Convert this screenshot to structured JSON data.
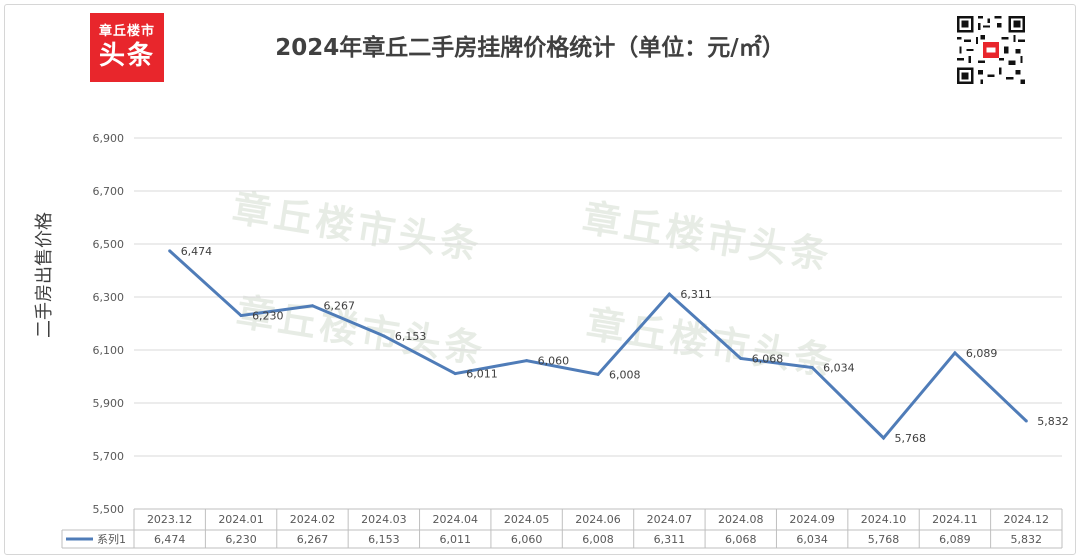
{
  "logo": {
    "line1": "章丘楼市",
    "line2": "头条"
  },
  "title": "2024年章丘二手房挂牌价格统计（单位：元/㎡）",
  "watermark": "章丘楼市头条",
  "chart_data": {
    "type": "line",
    "title": "2024年章丘二手房挂牌价格统计（单位：元/㎡）",
    "ylabel": "二手房出售价格",
    "xlabel": "",
    "ylim": [
      5500,
      6900
    ],
    "yticks": [
      5500,
      5700,
      5900,
      6100,
      6300,
      6500,
      6700,
      6900
    ],
    "ytick_labels": [
      "5,500",
      "5,700",
      "5,900",
      "6,100",
      "6,300",
      "6,500",
      "6,700",
      "6,900"
    ],
    "grid": true,
    "legend": "data-table",
    "categories": [
      "2023.12",
      "2024.01",
      "2024.02",
      "2024.03",
      "2024.04",
      "2024.05",
      "2024.06",
      "2024.07",
      "2024.08",
      "2024.09",
      "2024.10",
      "2024.11",
      "2024.12"
    ],
    "series": [
      {
        "name": "系列1",
        "color": "#4f7cb8",
        "values": [
          6474,
          6230,
          6267,
          6153,
          6011,
          6060,
          6008,
          6311,
          6068,
          6034,
          5768,
          6089,
          5832
        ],
        "labels": [
          "6,474",
          "6,230",
          "6,267",
          "6,153",
          "6,011",
          "6,060",
          "6,008",
          "6,311",
          "6,068",
          "6,034",
          "5,768",
          "6,089",
          "5,832"
        ]
      }
    ]
  }
}
